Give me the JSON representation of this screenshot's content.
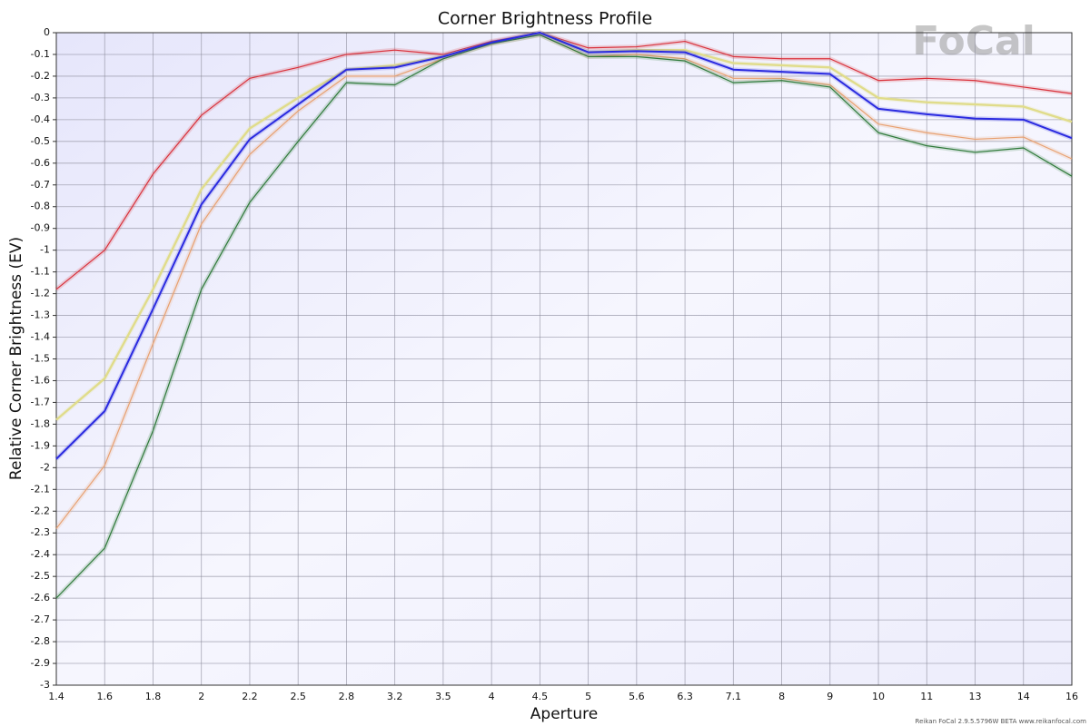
{
  "chart_data": {
    "type": "line",
    "title": "Corner Brightness Profile",
    "xlabel": "Aperture",
    "ylabel": "Relative Corner Brightness (EV)",
    "logo": "FoCal",
    "footer": "Reikan FoCal 2.9.5.5796W BETA  www.reikanfocal.com",
    "categories": [
      "1.4",
      "1.6",
      "1.8",
      "2",
      "2.2",
      "2.5",
      "2.8",
      "3.2",
      "3.5",
      "4",
      "4.5",
      "5",
      "5.6",
      "6.3",
      "7.1",
      "8",
      "9",
      "10",
      "11",
      "13",
      "14",
      "16"
    ],
    "ylim": [
      -3,
      0
    ],
    "yticks": [
      0,
      -0.1,
      -0.2,
      -0.3,
      -0.4,
      -0.5,
      -0.6,
      -0.7,
      -0.8,
      -0.9,
      -1,
      -1.1,
      -1.2,
      -1.3,
      -1.4,
      -1.5,
      -1.6,
      -1.7,
      -1.8,
      -1.9,
      -2,
      -2.1,
      -2.2,
      -2.3,
      -2.4,
      -2.5,
      -2.6,
      -2.7,
      -2.8,
      -2.9,
      -3
    ],
    "grid": true,
    "series": [
      {
        "color": "#d9303a",
        "values": [
          -1.18,
          -1.0,
          -0.65,
          -0.38,
          -0.21,
          -0.16,
          -0.1,
          -0.08,
          -0.1,
          -0.04,
          0,
          -0.07,
          -0.065,
          -0.04,
          -0.11,
          -0.12,
          -0.12,
          -0.22,
          -0.21,
          -0.22,
          -0.25,
          -0.28
        ]
      },
      {
        "color": "#e0dc8a",
        "values": [
          -1.78,
          -1.59,
          -1.18,
          -0.72,
          -0.44,
          -0.3,
          -0.17,
          -0.15,
          -0.11,
          -0.05,
          0,
          -0.09,
          -0.08,
          -0.08,
          -0.14,
          -0.15,
          -0.16,
          -0.3,
          -0.32,
          -0.33,
          -0.34,
          -0.41
        ]
      },
      {
        "color": "#e8a070",
        "values": [
          -2.28,
          -1.99,
          -1.43,
          -0.88,
          -0.56,
          -0.36,
          -0.2,
          -0.2,
          -0.12,
          -0.05,
          -0.01,
          -0.11,
          -0.1,
          -0.12,
          -0.21,
          -0.21,
          -0.24,
          -0.42,
          -0.46,
          -0.49,
          -0.48,
          -0.58
        ]
      },
      {
        "color": "#2f7a3a",
        "values": [
          -2.6,
          -2.37,
          -1.83,
          -1.18,
          -0.78,
          -0.5,
          -0.23,
          -0.24,
          -0.12,
          -0.05,
          -0.01,
          -0.11,
          -0.11,
          -0.13,
          -0.23,
          -0.22,
          -0.25,
          -0.46,
          -0.52,
          -0.55,
          -0.53,
          -0.66
        ]
      },
      {
        "color": "#2a2ae0",
        "values": [
          -1.96,
          -1.74,
          -1.27,
          -0.79,
          -0.49,
          -0.33,
          -0.17,
          -0.16,
          -0.11,
          -0.045,
          0,
          -0.09,
          -0.085,
          -0.09,
          -0.17,
          -0.18,
          -0.19,
          -0.35,
          -0.375,
          -0.395,
          -0.4,
          -0.485
        ]
      }
    ]
  }
}
